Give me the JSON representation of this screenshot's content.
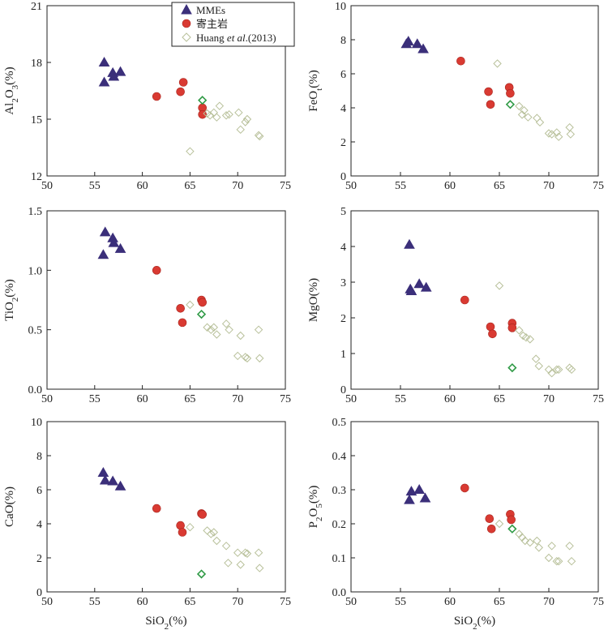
{
  "legend": {
    "mmes": "MMEs",
    "host": "寄主岩",
    "huang_pre": "Huang ",
    "huang_it": "et al",
    "huang_post": ".(2013)"
  },
  "colors": {
    "mmes": "#3b2f7a",
    "host": "#d93a32",
    "huang": "#b8c09a",
    "highlight": "#2f9a45"
  },
  "chart_data": [
    {
      "type": "scatter",
      "ylabel": {
        "main": "Al",
        "sub": "2",
        "main2": "O",
        "sub2": "3",
        "tail": "(%)"
      },
      "xlabel": "",
      "xlim": [
        50,
        75
      ],
      "ylim": [
        12,
        21
      ],
      "xticks": [
        50,
        55,
        60,
        65,
        70,
        75
      ],
      "yticks": [
        12,
        15,
        18,
        21
      ],
      "ytick_labels": [
        "12",
        "15",
        "18",
        "21"
      ],
      "series": [
        {
          "name": "MMEs",
          "points": [
            [
              56,
              18.0
            ],
            [
              56,
              16.95
            ],
            [
              56.9,
              17.45
            ],
            [
              57,
              17.25
            ],
            [
              57.7,
              17.5
            ]
          ]
        },
        {
          "name": "寄主岩",
          "points": [
            [
              61.5,
              16.2
            ],
            [
              64,
              16.45
            ],
            [
              64.3,
              16.95
            ],
            [
              66.3,
              15.6
            ],
            [
              66.3,
              15.25
            ]
          ]
        },
        {
          "name": "Huang et al.(2013)",
          "points": [
            [
              65,
              13.3
            ],
            [
              66.8,
              15.3
            ],
            [
              67.1,
              15.2
            ],
            [
              67.5,
              15.35
            ],
            [
              67.8,
              15.1
            ],
            [
              68.1,
              15.7
            ],
            [
              68.8,
              15.2
            ],
            [
              69.1,
              15.25
            ],
            [
              70.1,
              15.35
            ],
            [
              70.3,
              14.45
            ],
            [
              70.8,
              14.85
            ],
            [
              71,
              15.0
            ],
            [
              72.2,
              14.15
            ],
            [
              72.3,
              14.1
            ]
          ]
        },
        {
          "name": "highlight",
          "points": [
            [
              66.3,
              16.0
            ]
          ]
        }
      ]
    },
    {
      "type": "scatter",
      "ylabel": {
        "main": "FeO",
        "sub": "t",
        "main2": "",
        "sub2": "",
        "tail": "(%)"
      },
      "xlabel": "",
      "xlim": [
        50,
        75
      ],
      "ylim": [
        0,
        10
      ],
      "xticks": [
        50,
        55,
        60,
        65,
        70,
        75
      ],
      "yticks": [
        0,
        2,
        4,
        6,
        8,
        10
      ],
      "ytick_labels": [
        "0",
        "2",
        "4",
        "6",
        "8",
        "10"
      ],
      "series": [
        {
          "name": "MMEs",
          "points": [
            [
              55.6,
              7.75
            ],
            [
              55.8,
              7.9
            ],
            [
              56.7,
              7.75
            ],
            [
              57.3,
              7.45
            ]
          ]
        },
        {
          "name": "寄主岩",
          "points": [
            [
              61.1,
              6.75
            ],
            [
              63.9,
              4.95
            ],
            [
              64.1,
              4.2
            ],
            [
              66,
              5.2
            ],
            [
              66.1,
              4.85
            ]
          ]
        },
        {
          "name": "Huang et al.(2013)",
          "points": [
            [
              64.8,
              6.6
            ],
            [
              67,
              4.1
            ],
            [
              67.3,
              3.6
            ],
            [
              67.5,
              3.85
            ],
            [
              67.9,
              3.45
            ],
            [
              68.8,
              3.4
            ],
            [
              69.1,
              3.15
            ],
            [
              70,
              2.5
            ],
            [
              70.3,
              2.45
            ],
            [
              70.8,
              2.55
            ],
            [
              71,
              2.3
            ],
            [
              72.1,
              2.85
            ],
            [
              72.2,
              2.45
            ]
          ]
        },
        {
          "name": "highlight",
          "points": [
            [
              66.1,
              4.2
            ]
          ]
        }
      ]
    },
    {
      "type": "scatter",
      "ylabel": {
        "main": "TiO",
        "sub": "2",
        "main2": "",
        "sub2": "",
        "tail": "(%)"
      },
      "xlabel": "",
      "xlim": [
        50,
        75
      ],
      "ylim": [
        0,
        1.5
      ],
      "xticks": [
        50,
        55,
        60,
        65,
        70,
        75
      ],
      "yticks": [
        0,
        0.5,
        1.0,
        1.5
      ],
      "ytick_labels": [
        "0.0",
        "0.5",
        "1.0",
        "1.5"
      ],
      "series": [
        {
          "name": "MMEs",
          "points": [
            [
              55.9,
              1.13
            ],
            [
              56.1,
              1.32
            ],
            [
              56.9,
              1.27
            ],
            [
              57,
              1.23
            ],
            [
              57.7,
              1.18
            ]
          ]
        },
        {
          "name": "寄主岩",
          "points": [
            [
              61.5,
              1.0
            ],
            [
              64,
              0.68
            ],
            [
              64.2,
              0.56
            ],
            [
              66.2,
              0.75
            ],
            [
              66.3,
              0.73
            ]
          ]
        },
        {
          "name": "Huang et al.(2013)",
          "points": [
            [
              65,
              0.71
            ],
            [
              66.8,
              0.52
            ],
            [
              67.2,
              0.5
            ],
            [
              67.5,
              0.52
            ],
            [
              67.8,
              0.46
            ],
            [
              68.8,
              0.55
            ],
            [
              69.1,
              0.5
            ],
            [
              70,
              0.28
            ],
            [
              70.3,
              0.45
            ],
            [
              70.8,
              0.27
            ],
            [
              71,
              0.26
            ],
            [
              72.2,
              0.5
            ],
            [
              72.3,
              0.26
            ]
          ]
        },
        {
          "name": "highlight",
          "points": [
            [
              66.2,
              0.63
            ]
          ]
        }
      ]
    },
    {
      "type": "scatter",
      "ylabel": {
        "main": "MgO",
        "sub": "",
        "main2": "",
        "sub2": "",
        "tail": "(%)"
      },
      "xlabel": "",
      "xlim": [
        50,
        75
      ],
      "ylim": [
        0,
        5
      ],
      "xticks": [
        50,
        55,
        60,
        65,
        70,
        75
      ],
      "yticks": [
        0,
        1,
        2,
        3,
        4,
        5
      ],
      "ytick_labels": [
        "0",
        "1",
        "2",
        "3",
        "4",
        "5"
      ],
      "series": [
        {
          "name": "MMEs",
          "points": [
            [
              55.9,
              4.05
            ],
            [
              56,
              2.8
            ],
            [
              56.1,
              2.75
            ],
            [
              56.9,
              2.95
            ],
            [
              57.6,
              2.85
            ]
          ]
        },
        {
          "name": "寄主岩",
          "points": [
            [
              61.5,
              2.5
            ],
            [
              64.1,
              1.75
            ],
            [
              64.3,
              1.55
            ],
            [
              66.3,
              1.85
            ],
            [
              66.3,
              1.72
            ]
          ]
        },
        {
          "name": "Huang et al.(2013)",
          "points": [
            [
              65,
              2.9
            ],
            [
              67,
              1.65
            ],
            [
              67.4,
              1.5
            ],
            [
              67.7,
              1.45
            ],
            [
              68.1,
              1.4
            ],
            [
              68.7,
              0.85
            ],
            [
              69,
              0.65
            ],
            [
              70,
              0.55
            ],
            [
              70.3,
              0.45
            ],
            [
              70.8,
              0.55
            ],
            [
              71,
              0.55
            ],
            [
              72.1,
              0.6
            ],
            [
              72.3,
              0.55
            ]
          ]
        },
        {
          "name": "highlight",
          "points": [
            [
              66.3,
              0.6
            ]
          ]
        }
      ]
    },
    {
      "type": "scatter",
      "ylabel": {
        "main": "CaO",
        "sub": "",
        "main2": "",
        "sub2": "",
        "tail": "(%)"
      },
      "xlabel": "SiO2(%)",
      "xlim": [
        50,
        75
      ],
      "ylim": [
        0,
        10
      ],
      "xticks": [
        50,
        55,
        60,
        65,
        70,
        75
      ],
      "yticks": [
        0,
        2,
        4,
        6,
        8,
        10
      ],
      "ytick_labels": [
        "0",
        "2",
        "4",
        "6",
        "8",
        "10"
      ],
      "series": [
        {
          "name": "MMEs",
          "points": [
            [
              55.9,
              7.0
            ],
            [
              56.1,
              6.55
            ],
            [
              56.9,
              6.5
            ],
            [
              57.7,
              6.2
            ]
          ]
        },
        {
          "name": "寄主岩",
          "points": [
            [
              61.5,
              4.9
            ],
            [
              64,
              3.9
            ],
            [
              64.2,
              3.5
            ],
            [
              66.2,
              4.6
            ],
            [
              66.3,
              4.55
            ]
          ]
        },
        {
          "name": "Huang et al.(2013)",
          "points": [
            [
              65,
              3.8
            ],
            [
              66.8,
              3.6
            ],
            [
              67.2,
              3.4
            ],
            [
              67.5,
              3.5
            ],
            [
              67.8,
              3.0
            ],
            [
              68.8,
              2.7
            ],
            [
              69,
              1.7
            ],
            [
              70,
              2.3
            ],
            [
              70.3,
              1.6
            ],
            [
              70.8,
              2.3
            ],
            [
              71,
              2.25
            ],
            [
              72.2,
              2.3
            ],
            [
              72.3,
              1.4
            ]
          ]
        },
        {
          "name": "highlight",
          "points": [
            [
              66.2,
              1.05
            ]
          ]
        }
      ]
    },
    {
      "type": "scatter",
      "ylabel": {
        "main": "P",
        "sub": "2",
        "main2": "O",
        "sub2": "5",
        "tail": "(%)"
      },
      "xlabel": "SiO2(%)",
      "xlim": [
        50,
        75
      ],
      "ylim": [
        0,
        0.5
      ],
      "xticks": [
        50,
        55,
        60,
        65,
        70,
        75
      ],
      "yticks": [
        0,
        0.1,
        0.2,
        0.3,
        0.4,
        0.5
      ],
      "ytick_labels": [
        "0.0",
        "0.1",
        "0.2",
        "0.3",
        "0.4",
        "0.5"
      ],
      "series": [
        {
          "name": "MMEs",
          "points": [
            [
              55.9,
              0.27
            ],
            [
              56.1,
              0.295
            ],
            [
              56.9,
              0.3
            ],
            [
              57.5,
              0.275
            ]
          ]
        },
        {
          "name": "寄主岩",
          "points": [
            [
              61.5,
              0.305
            ],
            [
              64,
              0.215
            ],
            [
              64.2,
              0.185
            ],
            [
              66.1,
              0.228
            ],
            [
              66.2,
              0.212
            ]
          ]
        },
        {
          "name": "Huang et al.(2013)",
          "points": [
            [
              65,
              0.2
            ],
            [
              67,
              0.17
            ],
            [
              67.3,
              0.16
            ],
            [
              67.6,
              0.15
            ],
            [
              68.1,
              0.145
            ],
            [
              68.8,
              0.15
            ],
            [
              69,
              0.13
            ],
            [
              70,
              0.1
            ],
            [
              70.3,
              0.135
            ],
            [
              70.8,
              0.09
            ],
            [
              71,
              0.09
            ],
            [
              72.1,
              0.135
            ],
            [
              72.3,
              0.09
            ]
          ]
        },
        {
          "name": "highlight",
          "points": [
            [
              66.3,
              0.185
            ]
          ]
        }
      ]
    }
  ]
}
